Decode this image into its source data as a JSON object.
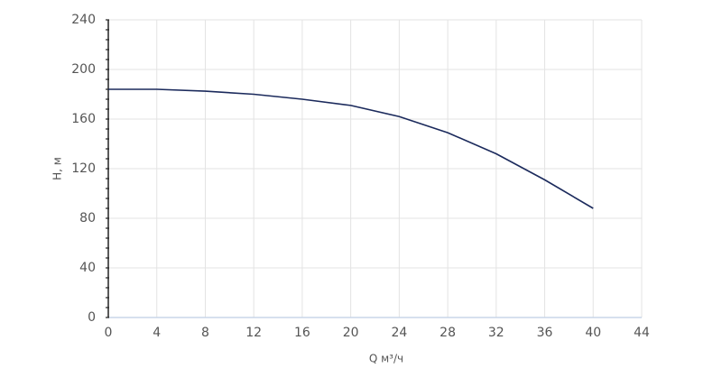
{
  "chart_data": {
    "type": "line",
    "x_label": "Q м³/ч",
    "y_label": "H, м",
    "x": [
      0,
      4,
      8,
      12,
      16,
      20,
      24,
      28,
      32,
      36,
      40
    ],
    "series": [
      {
        "name": "H",
        "color": "#1b2a5c",
        "values": [
          184,
          184,
          182.5,
          180,
          176,
          171,
          162,
          149,
          132,
          111,
          88
        ]
      }
    ],
    "xlim": [
      0,
      44
    ],
    "xticks": [
      0,
      4,
      8,
      12,
      16,
      20,
      24,
      28,
      32,
      36,
      40,
      44
    ],
    "ylim": [
      0,
      240
    ],
    "yticks": [
      0,
      40,
      80,
      120,
      160,
      200,
      240
    ],
    "grid": true
  }
}
